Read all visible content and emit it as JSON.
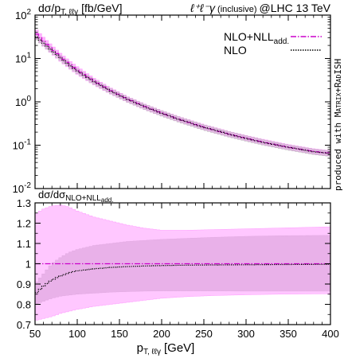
{
  "chart_data": [
    {
      "type": "line",
      "panel": "main",
      "ylabel": "dσ/p",
      "ylabel_sub": "T, ℓℓγ",
      "ylabel_unit": "[fb/GeV]",
      "title_particles": "ℓ⁺ℓ⁻γ",
      "title_mid": " (inclusive)",
      "title_tail": "@LHC 13 TeV",
      "xlim": [
        50,
        400
      ],
      "ylim": [
        0.01,
        100
      ],
      "yscale": "log",
      "y_tick_values": [
        0.01,
        0.1,
        1,
        10,
        100
      ],
      "y_tick_labels": [
        {
          "base": "10",
          "exp": "-2"
        },
        {
          "base": "10",
          "exp": "-1"
        },
        {
          "base": "10",
          "exp": "0"
        },
        {
          "base": "10",
          "exp": "1"
        },
        {
          "base": "10",
          "exp": "2"
        }
      ],
      "legend_position": "top-right",
      "series": [
        {
          "name": "NLO+NLL",
          "name_sub": "add.",
          "color": "#cc00cc",
          "style": "dash-dot",
          "band_color": "#ff99ff",
          "x": [
            50,
            60,
            70,
            80,
            90,
            100,
            120,
            140,
            160,
            180,
            200,
            220,
            250,
            280,
            300,
            320,
            350,
            380,
            400
          ],
          "y": [
            40,
            25,
            16.5,
            11,
            7.6,
            5.4,
            3.0,
            1.8,
            1.15,
            0.78,
            0.55,
            0.4,
            0.26,
            0.18,
            0.145,
            0.118,
            0.09,
            0.072,
            0.065
          ],
          "band_lo": [
            30,
            19,
            12.8,
            8.6,
            6.0,
            4.3,
            2.45,
            1.5,
            0.97,
            0.66,
            0.47,
            0.345,
            0.225,
            0.156,
            0.126,
            0.103,
            0.078,
            0.062,
            0.056
          ],
          "band_hi": [
            50,
            31,
            20,
            13.2,
            9.1,
            6.5,
            3.5,
            2.08,
            1.31,
            0.89,
            0.63,
            0.46,
            0.3,
            0.208,
            0.168,
            0.137,
            0.104,
            0.083,
            0.075
          ]
        },
        {
          "name": "NLO",
          "color": "#000000",
          "style": "dotted",
          "band_color": "#bbbbbb",
          "x": [
            50,
            60,
            70,
            80,
            90,
            100,
            120,
            140,
            160,
            180,
            200,
            220,
            250,
            280,
            300,
            320,
            350,
            380,
            400
          ],
          "y": [
            34,
            22.5,
            15.2,
            10.3,
            7.2,
            5.15,
            2.9,
            1.76,
            1.13,
            0.77,
            0.545,
            0.397,
            0.258,
            0.179,
            0.144,
            0.117,
            0.089,
            0.071,
            0.064
          ],
          "band_lo": [
            29,
            19.4,
            13.2,
            9.0,
            6.3,
            4.5,
            2.53,
            1.53,
            0.98,
            0.666,
            0.47,
            0.342,
            0.222,
            0.154,
            0.124,
            0.101,
            0.077,
            0.061,
            0.055
          ],
          "band_hi": [
            39,
            25.6,
            17.2,
            11.6,
            8.1,
            5.8,
            3.27,
            1.99,
            1.28,
            0.874,
            0.62,
            0.452,
            0.294,
            0.204,
            0.164,
            0.133,
            0.101,
            0.081,
            0.073
          ]
        }
      ]
    },
    {
      "type": "line",
      "panel": "ratio",
      "ylabel": "dσ/dσ",
      "ylabel_sub": "NLO+NLL",
      "ylabel_subsub": "add.",
      "xlabel": "p",
      "xlabel_sub": "T, ℓℓγ",
      "xlabel_unit": "[GeV]",
      "xlim": [
        50,
        400
      ],
      "ylim": [
        0.7,
        1.3
      ],
      "x_ticks": [
        50,
        100,
        150,
        200,
        250,
        300,
        350,
        400
      ],
      "y_ticks": [
        0.7,
        0.8,
        0.9,
        1.0,
        1.1,
        1.2,
        1.3
      ],
      "y_tick_labels": [
        "0.7",
        "0.8",
        "0.9",
        "1",
        "1.1",
        "1.2",
        "1.3"
      ],
      "series": [
        {
          "name": "NLO+NLL",
          "name_sub": "add.",
          "color": "#cc00cc",
          "style": "dash-dot",
          "band_color": "#ff99ff",
          "x": [
            50,
            60,
            70,
            80,
            90,
            100,
            120,
            140,
            160,
            180,
            200,
            230,
            260,
            300,
            340,
            400
          ],
          "y": [
            1,
            1,
            1,
            1,
            1,
            1,
            1,
            1,
            1,
            1,
            1,
            1,
            1,
            1,
            1,
            1
          ],
          "band_lo": [
            0.72,
            0.73,
            0.74,
            0.755,
            0.765,
            0.775,
            0.79,
            0.8,
            0.81,
            0.82,
            0.83,
            0.838,
            0.843,
            0.847,
            0.85,
            0.852
          ],
          "band_hi": [
            1.245,
            1.27,
            1.285,
            1.29,
            1.28,
            1.26,
            1.23,
            1.21,
            1.19,
            1.175,
            1.165,
            1.165,
            1.168,
            1.172,
            1.176,
            1.182
          ]
        },
        {
          "name": "NLO",
          "color": "#000000",
          "style": "dotted",
          "band_color": "#bbbbbb",
          "x": [
            50,
            60,
            70,
            80,
            90,
            100,
            120,
            140,
            160,
            180,
            200,
            230,
            260,
            300,
            340,
            400
          ],
          "y": [
            0.85,
            0.89,
            0.92,
            0.94,
            0.955,
            0.965,
            0.975,
            0.982,
            0.986,
            0.989,
            0.991,
            0.993,
            0.994,
            0.995,
            0.996,
            0.997
          ],
          "band_lo": [
            0.8,
            0.815,
            0.83,
            0.84,
            0.845,
            0.85,
            0.855,
            0.86,
            0.863,
            0.865,
            0.866,
            0.866,
            0.866,
            0.865,
            0.865,
            0.865
          ],
          "band_hi": [
            0.9,
            0.95,
            1.0,
            1.03,
            1.055,
            1.07,
            1.09,
            1.1,
            1.11,
            1.115,
            1.12,
            1.125,
            1.13,
            1.135,
            1.138,
            1.14
          ]
        }
      ]
    }
  ],
  "side_text": {
    "prefix": "produced with ",
    "brand1": "Matrix",
    "plus": "+",
    "brand2": "RadISH"
  }
}
